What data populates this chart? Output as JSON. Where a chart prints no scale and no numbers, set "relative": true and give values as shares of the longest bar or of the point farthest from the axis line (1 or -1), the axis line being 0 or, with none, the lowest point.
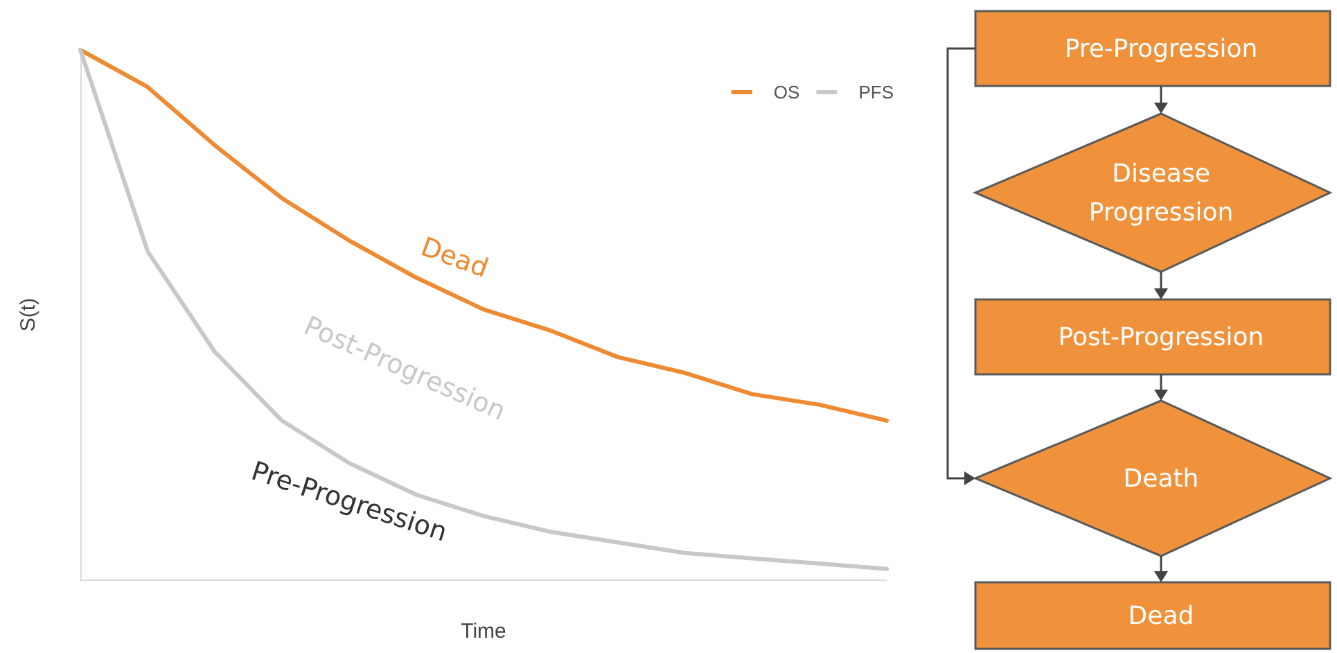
{
  "chart_data": [
    {
      "type": "line",
      "xlabel": "Time",
      "ylabel": "S(t)",
      "relative": true,
      "legend": "top right",
      "grid": false,
      "marker": "none",
      "line_style": "solid",
      "categories": [
        null,
        null,
        null,
        null,
        null,
        null,
        null,
        null,
        null,
        null,
        null,
        null,
        null
      ],
      "series": [
        {
          "name": "OS",
          "color": "#ee8a32",
          "values": [
            1,
            0.93,
            0.82,
            0.72,
            0.64,
            0.57,
            0.51,
            0.47,
            0.42,
            0.39,
            0.35,
            0.33,
            0.3
          ]
        },
        {
          "name": "PFS",
          "color": "#c8c8c8",
          "values": [
            1,
            0.62,
            0.43,
            0.3,
            0.22,
            0.16,
            0.12,
            0.09,
            0.07,
            0.05,
            0.04,
            0.03,
            0.02
          ]
        }
      ],
      "annotations": [
        "Dead",
        "Post-Progression",
        "Pre-Progression"
      ]
    },
    {
      "type": "other",
      "annotations": [
        "Pre-Progression",
        "Disease Progression",
        "Post-Progression",
        "Death",
        "Dead"
      ]
    }
  ]
}
